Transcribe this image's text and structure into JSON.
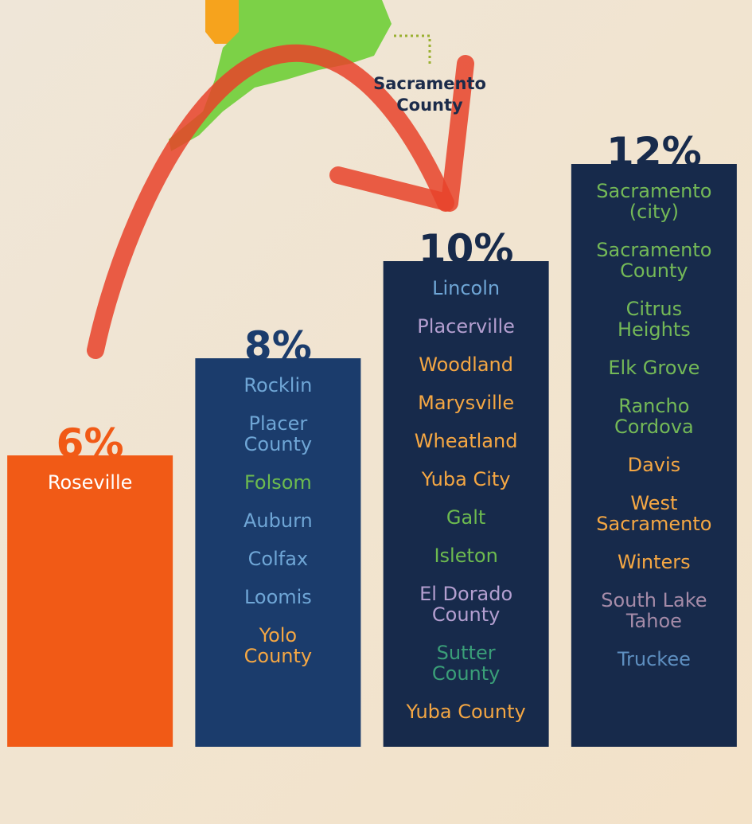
{
  "chart_data": {
    "type": "bar",
    "annotation_lines": [
      "Sacramento",
      "County"
    ],
    "values": [
      6,
      8,
      10,
      12
    ],
    "value_labels": [
      "6%",
      "8%",
      "10%",
      "12%"
    ],
    "colors": [
      "#f15a16",
      "#1b3c6c",
      "#172a4b",
      "#172a4b"
    ],
    "ylim": [
      0,
      15
    ],
    "places": [
      [
        {
          "lines": [
            "Roseville"
          ],
          "color": "#ffffff"
        }
      ],
      [
        {
          "lines": [
            "Rocklin"
          ],
          "color": "#6fa6d6"
        },
        {
          "lines": [
            "Placer",
            "County"
          ],
          "color": "#6fa6d6"
        },
        {
          "lines": [
            "Folsom"
          ],
          "color": "#6dbb4f"
        },
        {
          "lines": [
            "Auburn"
          ],
          "color": "#6fa6d6"
        },
        {
          "lines": [
            "Colfax"
          ],
          "color": "#6fa6d6"
        },
        {
          "lines": [
            "Loomis"
          ],
          "color": "#6fa6d6"
        },
        {
          "lines": [
            "Yolo",
            "County"
          ],
          "color": "#f5a743"
        }
      ],
      [
        {
          "lines": [
            "Lincoln"
          ],
          "color": "#6fa6d6"
        },
        {
          "lines": [
            "Placerville"
          ],
          "color": "#b49fd0"
        },
        {
          "lines": [
            "Woodland"
          ],
          "color": "#f5a743"
        },
        {
          "lines": [
            "Marysville"
          ],
          "color": "#f5a743"
        },
        {
          "lines": [
            "Wheatland"
          ],
          "color": "#f5a743"
        },
        {
          "lines": [
            "Yuba City"
          ],
          "color": "#f5a743"
        },
        {
          "lines": [
            "Galt"
          ],
          "color": "#6dbb4f"
        },
        {
          "lines": [
            "Isleton"
          ],
          "color": "#6dbb4f"
        },
        {
          "lines": [
            "El Dorado",
            "County"
          ],
          "color": "#b49fd0"
        },
        {
          "lines": [
            "Sutter",
            "County"
          ],
          "color": "#3a9f78"
        },
        {
          "lines": [
            "Yuba County"
          ],
          "color": "#f5a743"
        }
      ],
      [
        {
          "lines": [
            "Sacramento",
            "(city)"
          ],
          "color": "#74b957"
        },
        {
          "lines": [
            "Sacramento",
            "County"
          ],
          "color": "#74b957"
        },
        {
          "lines": [
            "Citrus",
            "Heights"
          ],
          "color": "#74b957"
        },
        {
          "lines": [
            "Elk Grove"
          ],
          "color": "#74b957"
        },
        {
          "lines": [
            "Rancho",
            "Cordova"
          ],
          "color": "#74b957"
        },
        {
          "lines": [
            "Davis"
          ],
          "color": "#f5a743"
        },
        {
          "lines": [
            "West",
            "Sacramento"
          ],
          "color": "#f5a743"
        },
        {
          "lines": [
            "Winters"
          ],
          "color": "#f5a743"
        },
        {
          "lines": [
            "South Lake",
            "Tahoe"
          ],
          "color": "#a58ba8"
        },
        {
          "lines": [
            "Truckee"
          ],
          "color": "#5e8fc0"
        }
      ]
    ]
  }
}
